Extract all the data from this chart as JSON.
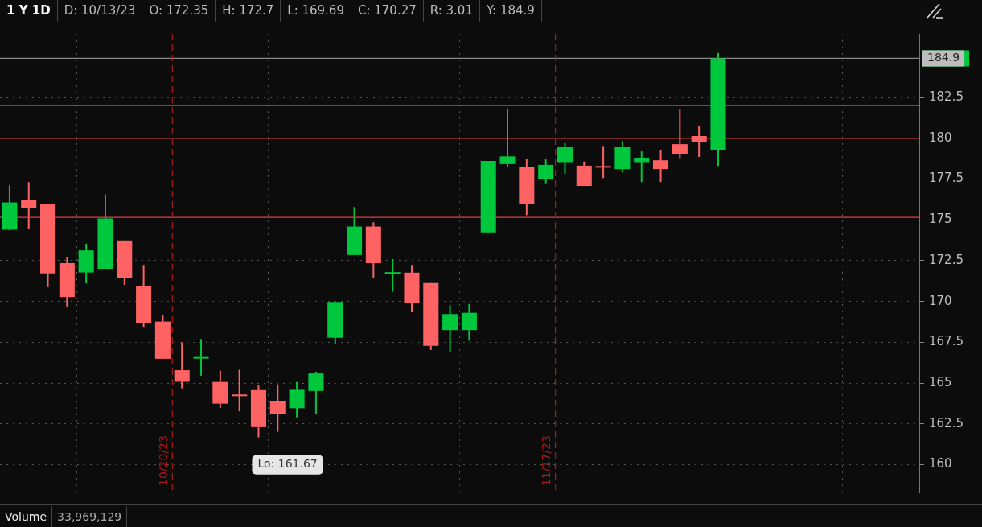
{
  "chart_data": {
    "type": "candlestick",
    "title": "1 Y 1D",
    "categories": [
      null,
      null,
      null,
      null,
      null,
      null,
      null,
      null,
      "10/20/23",
      null,
      null,
      null,
      null,
      null,
      null,
      null,
      null,
      null,
      null,
      null,
      null,
      null,
      null,
      null,
      null,
      null,
      null,
      null,
      "11/17/23",
      null,
      null,
      null,
      null,
      null,
      null,
      null,
      null,
      null,
      null,
      null,
      null,
      null,
      null,
      null,
      null,
      null,
      null,
      null
    ],
    "ohlc": [
      [
        174.4,
        177.12,
        174.35,
        176.07
      ],
      [
        176.23,
        177.32,
        174.43,
        175.73
      ],
      [
        176.0,
        176.0,
        170.88,
        171.72
      ],
      [
        172.35,
        172.7,
        169.69,
        170.27
      ],
      [
        171.78,
        173.54,
        171.11,
        173.13
      ],
      [
        172.0,
        176.57,
        172.0,
        175.08
      ],
      [
        173.74,
        173.74,
        171.02,
        171.42
      ],
      [
        170.94,
        172.24,
        168.4,
        168.69
      ],
      [
        168.77,
        169.15,
        166.49,
        166.49
      ],
      [
        165.79,
        167.5,
        164.68,
        165.08
      ],
      [
        166.5,
        167.7,
        165.46,
        166.6
      ],
      [
        165.07,
        165.77,
        163.47,
        163.74
      ],
      [
        164.3,
        165.82,
        163.27,
        164.2
      ],
      [
        164.57,
        164.88,
        161.67,
        162.3
      ],
      [
        163.9,
        164.92,
        162.02,
        163.11
      ],
      [
        163.46,
        165.07,
        162.9,
        164.59
      ],
      [
        164.52,
        165.7,
        163.11,
        165.59
      ],
      [
        167.78,
        170.0,
        167.39,
        169.97
      ],
      [
        172.85,
        175.79,
        172.85,
        174.59
      ],
      [
        174.59,
        174.85,
        171.44,
        172.35
      ],
      [
        171.7,
        172.6,
        170.6,
        171.75
      ],
      [
        171.77,
        172.24,
        169.34,
        169.89
      ],
      [
        171.13,
        171.13,
        167.03,
        167.28
      ],
      [
        168.25,
        169.77,
        166.89,
        169.23
      ],
      [
        168.25,
        169.85,
        167.59,
        169.31
      ],
      [
        174.24,
        178.61,
        174.24,
        178.61
      ],
      [
        178.42,
        181.83,
        178.23,
        178.89
      ],
      [
        178.25,
        178.73,
        175.29,
        175.95
      ],
      [
        177.51,
        178.73,
        177.2,
        178.37
      ],
      [
        178.54,
        179.7,
        177.83,
        179.45
      ],
      [
        178.32,
        178.58,
        177.08,
        177.08
      ],
      [
        178.3,
        179.48,
        177.56,
        178.2
      ],
      [
        178.11,
        179.83,
        177.9,
        179.45
      ],
      [
        178.54,
        179.2,
        177.32,
        178.81
      ],
      [
        178.65,
        179.28,
        177.32,
        178.11
      ],
      [
        179.64,
        181.78,
        178.78,
        179.05
      ],
      [
        180.14,
        180.77,
        178.86,
        179.75
      ],
      [
        179.28,
        185.23,
        178.3,
        184.9
      ],
      null,
      null,
      null,
      null,
      null,
      null,
      null,
      null,
      null,
      null
    ],
    "colors": [
      "#00c83c",
      "#ff6262",
      "#ff6262",
      "#ff6262",
      "#00c83c",
      "#00c83c",
      "#ff6262",
      "#ff6262",
      "#ff6262",
      "#ff6262",
      "#00c83c",
      "#ff6262",
      "#ff6262",
      "#ff6262",
      "#ff6262",
      "#00c83c",
      "#00c83c",
      "#00c83c",
      "#00c83c",
      "#ff6262",
      "#00c83c",
      "#ff6262",
      "#ff6262",
      "#00c83c",
      "#00c83c",
      "#00c83c",
      "#00c83c",
      "#ff6262",
      "#00c83c",
      "#00c83c",
      "#ff6262",
      "#ff6262",
      "#00c83c",
      "#00c83c",
      "#ff6262",
      "#ff6262",
      "#ff6262",
      "#00c83c",
      null,
      null,
      null,
      null,
      null,
      null,
      null,
      null,
      null,
      null
    ],
    "ylim": [
      158.3,
      186.4
    ],
    "yticks": [
      160,
      162.5,
      165,
      167.5,
      170,
      172.5,
      175,
      177.5,
      180,
      182.5
    ],
    "grid": true,
    "ref_lines": [
      {
        "axis": "y",
        "value": 182,
        "color": "#e04040"
      },
      {
        "axis": "y",
        "value": 180,
        "color": "#e04040"
      },
      {
        "axis": "y",
        "value": 175.15,
        "color": "#e04040"
      },
      {
        "axis": "y",
        "value": 184.9,
        "label": "184.9",
        "color": "#8a8a8a"
      }
    ],
    "annotations": [
      "D: 10/13/23",
      "O: 172.35",
      "H: 172.7",
      "L: 169.69",
      "C: 170.27",
      "R: 3.01",
      "Y: 184.9",
      "Lo: 161.67",
      "Volume",
      "33,969,129"
    ]
  }
}
